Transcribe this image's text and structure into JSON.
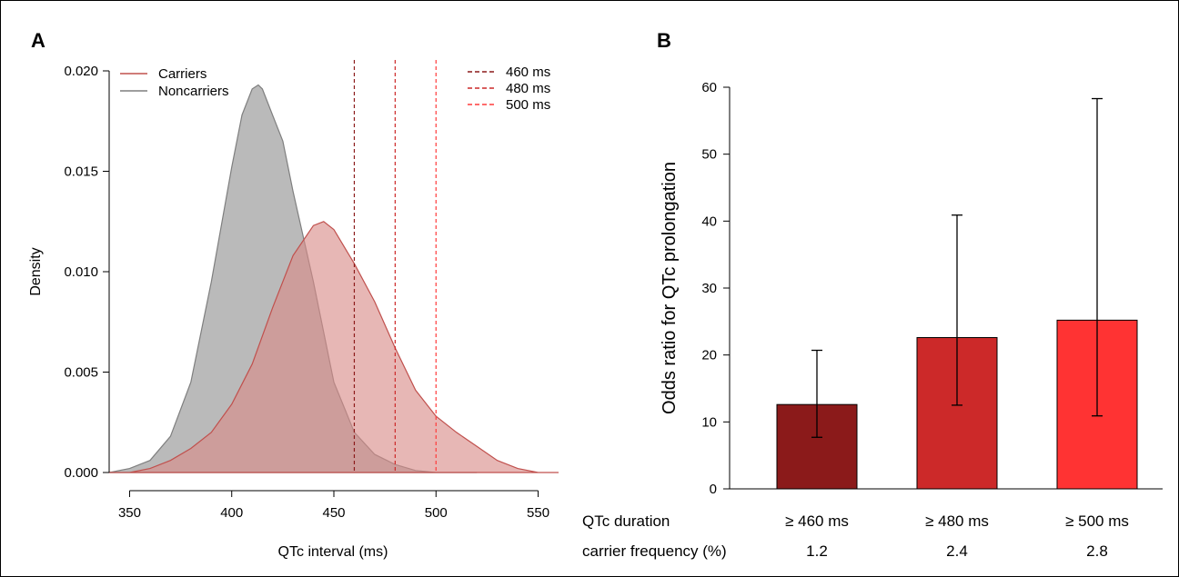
{
  "panels": [
    {
      "letter": "A"
    },
    {
      "letter": "B"
    }
  ],
  "chart_data": [
    {
      "type": "area",
      "panel": "A",
      "xlabel": "QTc interval (ms)",
      "ylabel": "Density",
      "xlim": [
        340,
        560
      ],
      "ylim": [
        0,
        0.02
      ],
      "xticks": [
        "350",
        "400",
        "450",
        "500",
        "550"
      ],
      "yticks": [
        "0.000",
        "0.005",
        "0.010",
        "0.015",
        "0.020"
      ],
      "legend_position": "top-left",
      "series": [
        {
          "name": "Carriers",
          "color": "#c0504d",
          "fill": "#d98a88",
          "x": [
            340,
            350,
            360,
            370,
            380,
            390,
            400,
            410,
            420,
            430,
            440,
            445,
            450,
            460,
            470,
            480,
            490,
            500,
            510,
            520,
            530,
            540,
            550,
            560
          ],
          "y": [
            0.0,
            0.0,
            0.0002,
            0.0006,
            0.0012,
            0.002,
            0.0034,
            0.0054,
            0.0082,
            0.0108,
            0.0123,
            0.0125,
            0.0121,
            0.0104,
            0.0085,
            0.0062,
            0.0041,
            0.0028,
            0.002,
            0.0013,
            0.0006,
            0.0002,
            0.0,
            0.0
          ]
        },
        {
          "name": "Noncarriers",
          "color": "#7f7f7f",
          "fill": "#b3b3b3",
          "x": [
            340,
            350,
            360,
            370,
            380,
            390,
            400,
            405,
            410,
            413,
            415,
            420,
            425,
            430,
            440,
            450,
            460,
            470,
            480,
            490,
            500,
            510,
            520
          ],
          "y": [
            0.0,
            0.0002,
            0.0006,
            0.0018,
            0.0045,
            0.0095,
            0.0152,
            0.0178,
            0.0191,
            0.0193,
            0.0191,
            0.0178,
            0.0165,
            0.014,
            0.0095,
            0.0045,
            0.002,
            0.0009,
            0.0004,
            0.0001,
            0.0,
            0.0,
            0.0
          ]
        }
      ],
      "thresholds": [
        {
          "label": "460 ms",
          "x": 460,
          "color": "#8b1a1a"
        },
        {
          "label": "480 ms",
          "x": 480,
          "color": "#cc2929"
        },
        {
          "label": "500 ms",
          "x": 500,
          "color": "#ff3b3b"
        }
      ]
    },
    {
      "type": "bar",
      "panel": "B",
      "ylabel": "Odds ratio for QTc prolongation",
      "ylim": [
        0,
        60
      ],
      "yticks": [
        "0",
        "10",
        "20",
        "30",
        "40",
        "50",
        "60"
      ],
      "categories": [
        "≥ 460 ms",
        "≥ 480 ms",
        "≥ 500 ms"
      ],
      "values": [
        12.6,
        22.6,
        25.2
      ],
      "ci_lower": [
        7.7,
        12.5,
        10.9
      ],
      "ci_upper": [
        20.7,
        40.9,
        58.3
      ],
      "colors": [
        "#8b1a1a",
        "#cc2929",
        "#ff3333"
      ],
      "table": {
        "row1_label": "QTc duration",
        "row2_label": "carrier frequency (%)",
        "carrier_frequency": [
          "1.2",
          "2.4",
          "2.8"
        ]
      }
    }
  ]
}
